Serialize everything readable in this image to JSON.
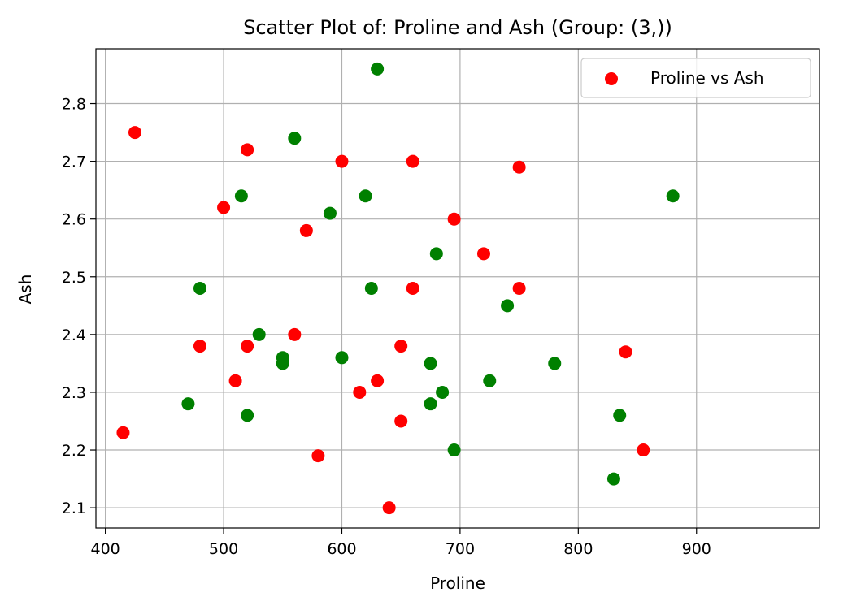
{
  "chart_data": {
    "type": "scatter",
    "title": "Scatter Plot of: Proline and Ash (Group: (3,))",
    "xlabel": "Proline",
    "ylabel": "Ash",
    "xlim": [
      392,
      1004
    ],
    "ylim": [
      2.065,
      2.895
    ],
    "x_ticks": [
      400,
      500,
      600,
      700,
      800,
      900
    ],
    "y_ticks": [
      2.1,
      2.2,
      2.3,
      2.4,
      2.5,
      2.6,
      2.7,
      2.8
    ],
    "grid": true,
    "legend_position": "upper right",
    "series": [
      {
        "name": "Proline vs Ash",
        "color": "#ff0000",
        "in_legend": true,
        "points": [
          [
            415,
            2.23
          ],
          [
            425,
            2.75
          ],
          [
            480,
            2.38
          ],
          [
            500,
            2.62
          ],
          [
            510,
            2.32
          ],
          [
            520,
            2.72
          ],
          [
            520,
            2.38
          ],
          [
            560,
            2.4
          ],
          [
            570,
            2.58
          ],
          [
            580,
            2.19
          ],
          [
            600,
            2.7
          ],
          [
            615,
            2.3
          ],
          [
            630,
            2.32
          ],
          [
            640,
            2.1
          ],
          [
            650,
            2.38
          ],
          [
            650,
            2.25
          ],
          [
            660,
            2.7
          ],
          [
            660,
            2.48
          ],
          [
            695,
            2.6
          ],
          [
            720,
            2.54
          ],
          [
            750,
            2.69
          ],
          [
            750,
            2.48
          ],
          [
            840,
            2.37
          ],
          [
            855,
            2.2
          ]
        ]
      },
      {
        "color": "#008000",
        "in_legend": false,
        "points": [
          [
            470,
            2.28
          ],
          [
            480,
            2.48
          ],
          [
            515,
            2.64
          ],
          [
            520,
            2.26
          ],
          [
            530,
            2.4
          ],
          [
            550,
            2.36
          ],
          [
            550,
            2.35
          ],
          [
            560,
            2.74
          ],
          [
            590,
            2.61
          ],
          [
            600,
            2.36
          ],
          [
            620,
            2.64
          ],
          [
            625,
            2.48
          ],
          [
            630,
            2.86
          ],
          [
            675,
            2.35
          ],
          [
            675,
            2.28
          ],
          [
            680,
            2.54
          ],
          [
            685,
            2.3
          ],
          [
            695,
            2.2
          ],
          [
            725,
            2.32
          ],
          [
            740,
            2.45
          ],
          [
            780,
            2.35
          ],
          [
            830,
            2.15
          ],
          [
            835,
            2.26
          ],
          [
            880,
            2.64
          ]
        ]
      }
    ]
  }
}
